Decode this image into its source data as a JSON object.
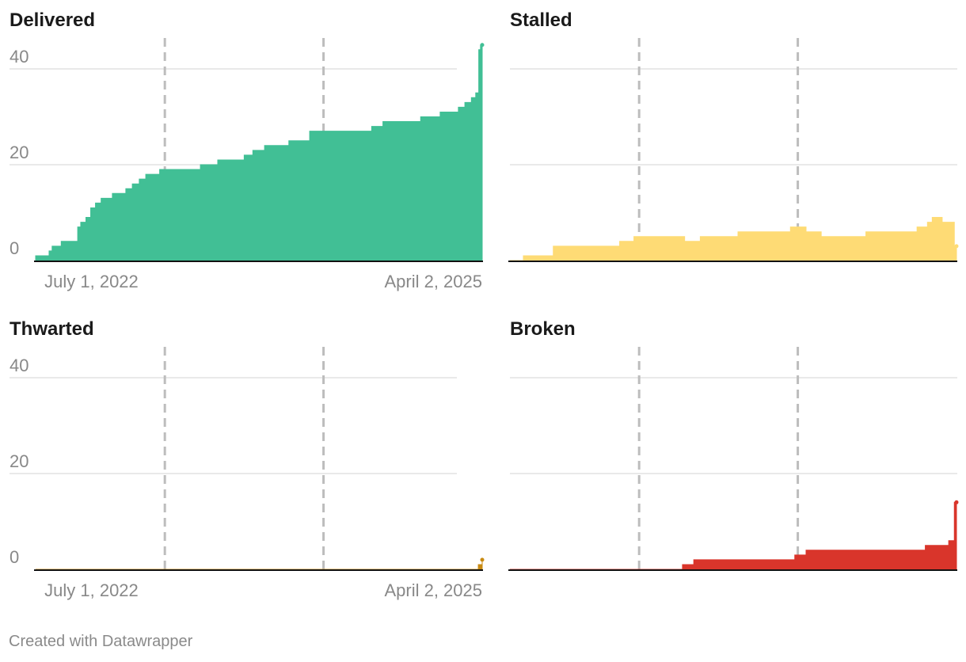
{
  "footer": "Created with Datawrapper",
  "colors": {
    "grid": "#e2e2e2",
    "marker": "#bdbdbd",
    "axis": "#111111",
    "tick_text": "#888888",
    "title_text": "#1a1a1a"
  },
  "chart_data": [
    {
      "type": "area",
      "title": "Delivered",
      "color": "#41bf95",
      "ylim": [
        0,
        45
      ],
      "yticks": [
        "40",
        "20",
        "0"
      ],
      "ytick_values": [
        40,
        20,
        0
      ],
      "xlim": [
        "2022-06-07",
        "2025-04-02"
      ],
      "xtick_labels": [
        "July 1, 2022",
        "April 2, 2025"
      ],
      "xtick_dates": [
        "2022-07-01",
        "2025-04-02"
      ],
      "reference_lines": [
        "2023-04-01",
        "2024-04-01"
      ],
      "x": [
        "2022-06-07",
        "2022-07-08",
        "2022-07-15",
        "2022-07-29",
        "2022-08-05",
        "2022-09-02",
        "2022-09-12",
        "2022-09-19",
        "2022-10-01",
        "2022-10-12",
        "2022-10-23",
        "2022-11-05",
        "2022-11-17",
        "2022-12-01",
        "2023-01-01",
        "2023-01-16",
        "2023-02-01",
        "2023-02-16",
        "2023-03-05",
        "2023-03-20",
        "2023-04-05",
        "2023-06-01",
        "2023-06-22",
        "2023-08-01",
        "2023-09-12",
        "2023-10-01",
        "2023-10-21",
        "2023-11-17",
        "2024-01-12",
        "2024-02-29",
        "2024-04-01",
        "2024-07-21",
        "2024-08-16",
        "2024-10-01",
        "2024-11-11",
        "2024-12-26",
        "2025-01-16",
        "2025-02-06",
        "2025-02-21",
        "2025-03-08",
        "2025-03-18",
        "2025-03-25",
        "2025-03-29",
        "2025-04-02"
      ],
      "y": [
        1,
        2,
        3,
        3,
        4,
        4,
        7,
        8,
        9,
        11,
        12,
        13,
        13,
        14,
        15,
        16,
        17,
        18,
        18,
        19,
        19,
        19,
        20,
        21,
        21,
        22,
        23,
        24,
        25,
        27,
        27,
        28,
        29,
        29,
        30,
        31,
        31,
        32,
        33,
        34,
        35,
        44,
        45,
        45
      ]
    },
    {
      "type": "area",
      "title": "Stalled",
      "color": "#fedb75",
      "ylim": [
        0,
        45
      ],
      "yticks": [],
      "ytick_values": [
        40,
        20,
        0
      ],
      "xlim": [
        "2022-06-07",
        "2025-04-02"
      ],
      "xtick_labels": [],
      "xtick_dates": [],
      "reference_lines": [
        "2023-04-01",
        "2024-04-01"
      ],
      "x": [
        "2022-06-07",
        "2022-07-08",
        "2022-09-15",
        "2023-02-15",
        "2023-03-20",
        "2023-06-05",
        "2023-07-15",
        "2023-08-20",
        "2023-11-15",
        "2024-03-15",
        "2024-04-20",
        "2024-05-25",
        "2024-09-05",
        "2025-01-01",
        "2025-01-25",
        "2025-02-05",
        "2025-02-28",
        "2025-03-28",
        "2025-04-02"
      ],
      "y": [
        0,
        1,
        3,
        4,
        5,
        5,
        4,
        5,
        6,
        7,
        6,
        5,
        6,
        7,
        8,
        9,
        8,
        3,
        3
      ]
    },
    {
      "type": "area",
      "title": "Thwarted",
      "color": "#c88a12",
      "ylim": [
        0,
        45
      ],
      "yticks": [
        "40",
        "20",
        "0"
      ],
      "ytick_values": [
        40,
        20,
        0
      ],
      "xlim": [
        "2022-06-07",
        "2025-04-02"
      ],
      "xtick_labels": [
        "July 1, 2022",
        "April 2, 2025"
      ],
      "xtick_dates": [
        "2022-07-01",
        "2025-04-02"
      ],
      "reference_lines": [
        "2023-04-01",
        "2024-04-01"
      ],
      "x": [
        "2022-06-07",
        "2025-03-18",
        "2025-03-24",
        "2025-04-02"
      ],
      "y": [
        0,
        0,
        1,
        2
      ]
    },
    {
      "type": "area",
      "title": "Broken",
      "color": "#d9352b",
      "ylim": [
        0,
        45
      ],
      "yticks": [],
      "ytick_values": [
        40,
        20,
        0
      ],
      "xlim": [
        "2022-06-07",
        "2025-04-02"
      ],
      "xtick_labels": [],
      "xtick_dates": [],
      "reference_lines": [
        "2023-04-01",
        "2024-04-01"
      ],
      "x": [
        "2022-06-07",
        "2023-07-10",
        "2023-08-05",
        "2023-12-20",
        "2024-03-25",
        "2024-04-20",
        "2025-01-20",
        "2025-03-15",
        "2025-03-28",
        "2025-04-02"
      ],
      "y": [
        0,
        1,
        2,
        2,
        3,
        4,
        5,
        6,
        14,
        14
      ]
    }
  ]
}
